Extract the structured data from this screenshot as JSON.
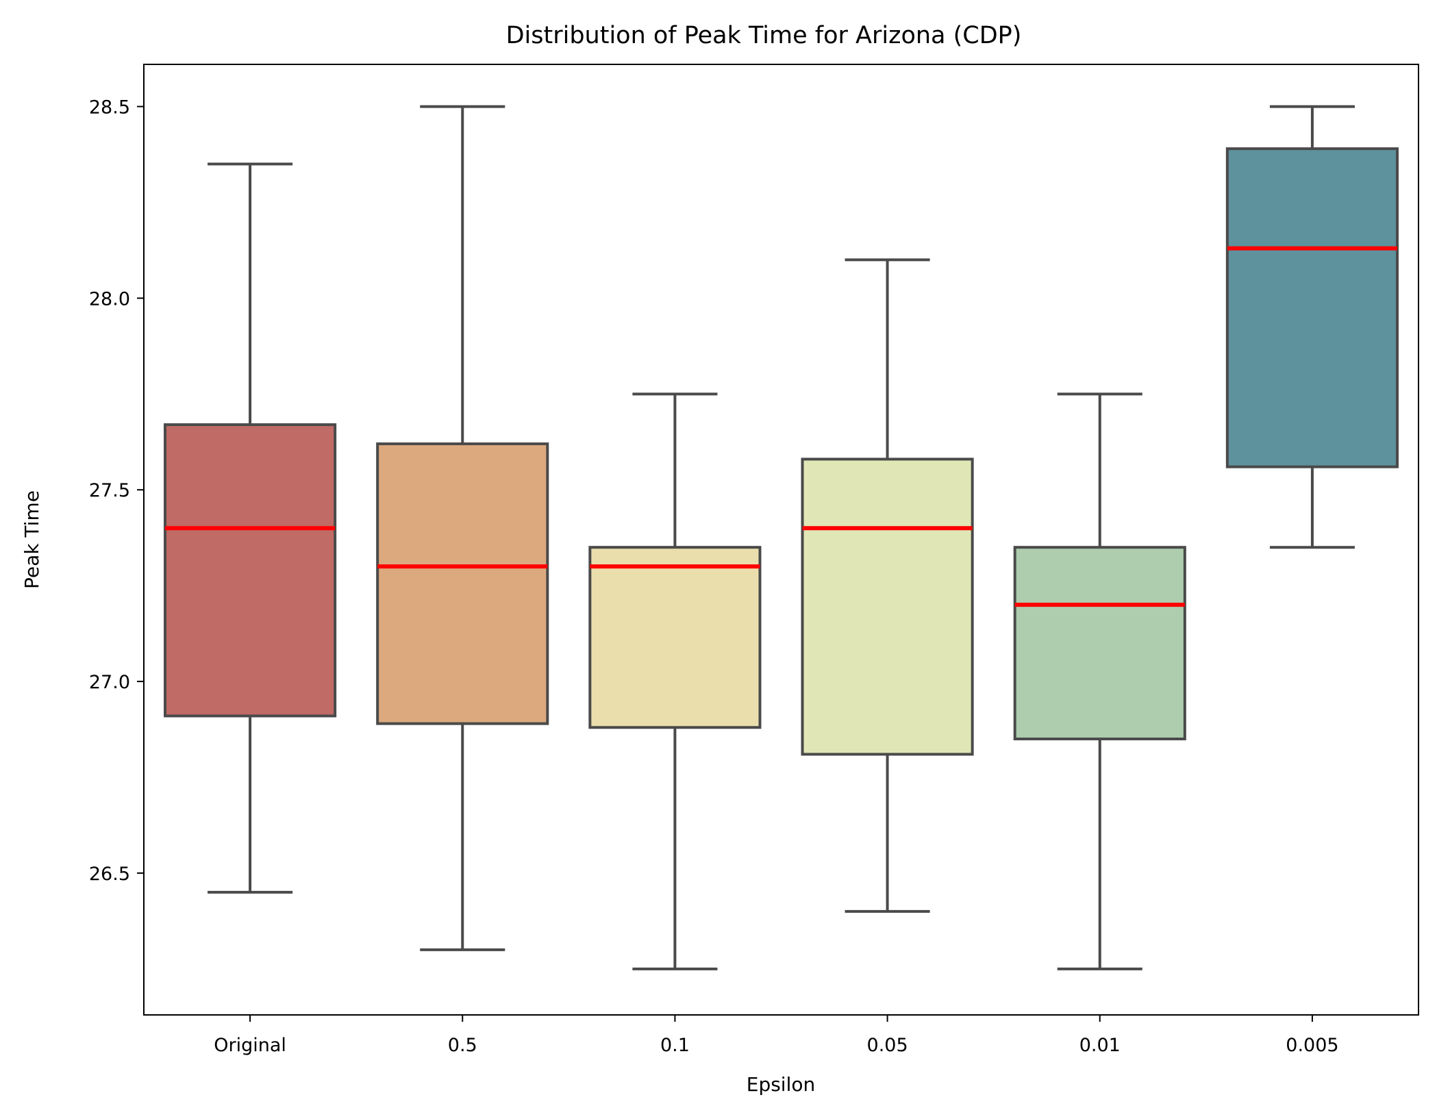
{
  "chart_data": {
    "type": "box",
    "title": "Distribution of Peak Time for Arizona (CDP)",
    "xlabel": "Epsilon",
    "ylabel": "Peak Time",
    "categories": [
      "Original",
      "0.5",
      "0.1",
      "0.05",
      "0.01",
      "0.005"
    ],
    "yticks": [
      "26.5",
      "27.0",
      "27.5",
      "28.0",
      "28.5"
    ],
    "ylim": [
      26.13,
      28.61
    ],
    "boxes": [
      {
        "label": "Original",
        "whisker_low": 26.45,
        "q1": 26.91,
        "median": 27.4,
        "q3": 27.67,
        "whisker_high": 28.35,
        "color": "#c06b66"
      },
      {
        "label": "0.5",
        "whisker_low": 26.3,
        "q1": 26.89,
        "median": 27.3,
        "q3": 27.62,
        "whisker_high": 28.5,
        "color": "#dca97e"
      },
      {
        "label": "0.1",
        "whisker_low": 26.25,
        "q1": 26.88,
        "median": 27.3,
        "q3": 27.35,
        "whisker_high": 27.75,
        "color": "#eadeac"
      },
      {
        "label": "0.05",
        "whisker_low": 26.4,
        "q1": 26.81,
        "median": 27.4,
        "q3": 27.58,
        "whisker_high": 28.1,
        "color": "#e1e6b6"
      },
      {
        "label": "0.01",
        "whisker_low": 26.25,
        "q1": 26.85,
        "median": 27.2,
        "q3": 27.35,
        "whisker_high": 27.75,
        "color": "#adcdae"
      },
      {
        "label": "0.005",
        "whisker_low": 27.35,
        "q1": 27.56,
        "median": 28.13,
        "q3": 28.39,
        "whisker_high": 28.5,
        "color": "#5e929d"
      }
    ],
    "median_color": "#ff0000",
    "line_color": "#4a4a4a",
    "grid": false,
    "legend": "none"
  }
}
